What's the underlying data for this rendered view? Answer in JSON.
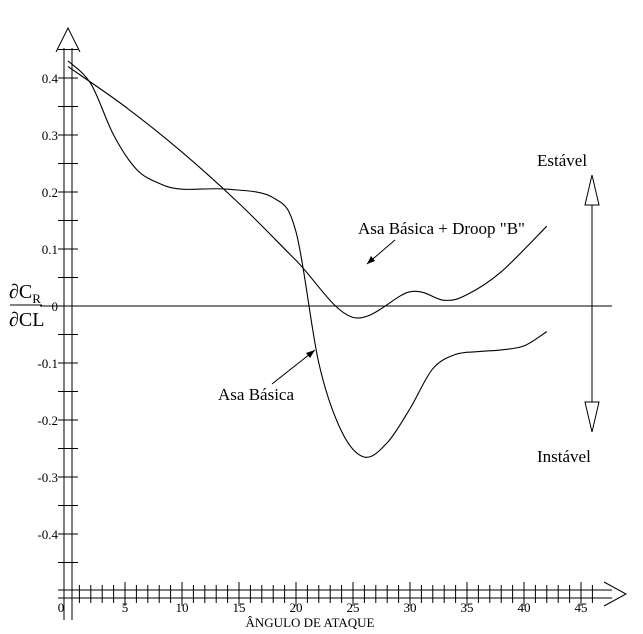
{
  "chart_data": {
    "type": "line",
    "title": "",
    "xlabel": "ÂNGULO DE ATAQUE",
    "ylabel": {
      "numerator": "∂C",
      "numerator_sub": "R",
      "denominator": "∂CL"
    },
    "xlim": [
      0,
      48
    ],
    "ylim": [
      -0.5,
      0.48
    ],
    "x_ticks": [
      0,
      5,
      10,
      15,
      20,
      25,
      30,
      35,
      40,
      45
    ],
    "x_tick_labels": [
      "0",
      "5",
      "10",
      "15",
      "20",
      "25",
      "30",
      "35",
      "40",
      "45"
    ],
    "y_ticks": [
      0.4,
      0.3,
      0.2,
      0.1,
      0,
      -0.1,
      -0.2,
      -0.3,
      -0.4
    ],
    "y_tick_labels": [
      "0.4",
      "0.3",
      "0.2",
      "0.1",
      "0",
      "-0.1",
      "-0.2",
      "-0.3",
      "-0.4"
    ],
    "grid": false,
    "series": [
      {
        "name": "Asa Básica + Droop \"B\"",
        "x": [
          0,
          5,
          10,
          15,
          20,
          25,
          30,
          33,
          35,
          38,
          42
        ],
        "y": [
          0.42,
          0.35,
          0.27,
          0.18,
          0.08,
          -0.02,
          0.025,
          0.01,
          0.02,
          0.06,
          0.14
        ]
      },
      {
        "name": "Asa Básica",
        "x": [
          0,
          2,
          4,
          6,
          8,
          10,
          14,
          18,
          20,
          22,
          24,
          26,
          28,
          30,
          32,
          34,
          36,
          38,
          40,
          42
        ],
        "y": [
          0.43,
          0.39,
          0.3,
          0.24,
          0.215,
          0.205,
          0.205,
          0.19,
          0.13,
          -0.1,
          -0.22,
          -0.265,
          -0.24,
          -0.18,
          -0.11,
          -0.085,
          -0.08,
          -0.077,
          -0.07,
          -0.045
        ]
      }
    ],
    "annotations": [
      {
        "text": "Asa Básica + Droop \"B\"",
        "series": 0
      },
      {
        "text": "Asa Básica",
        "series": 1
      }
    ],
    "stability_arrow": {
      "up_label": "Estável",
      "down_label": "Instável"
    }
  }
}
